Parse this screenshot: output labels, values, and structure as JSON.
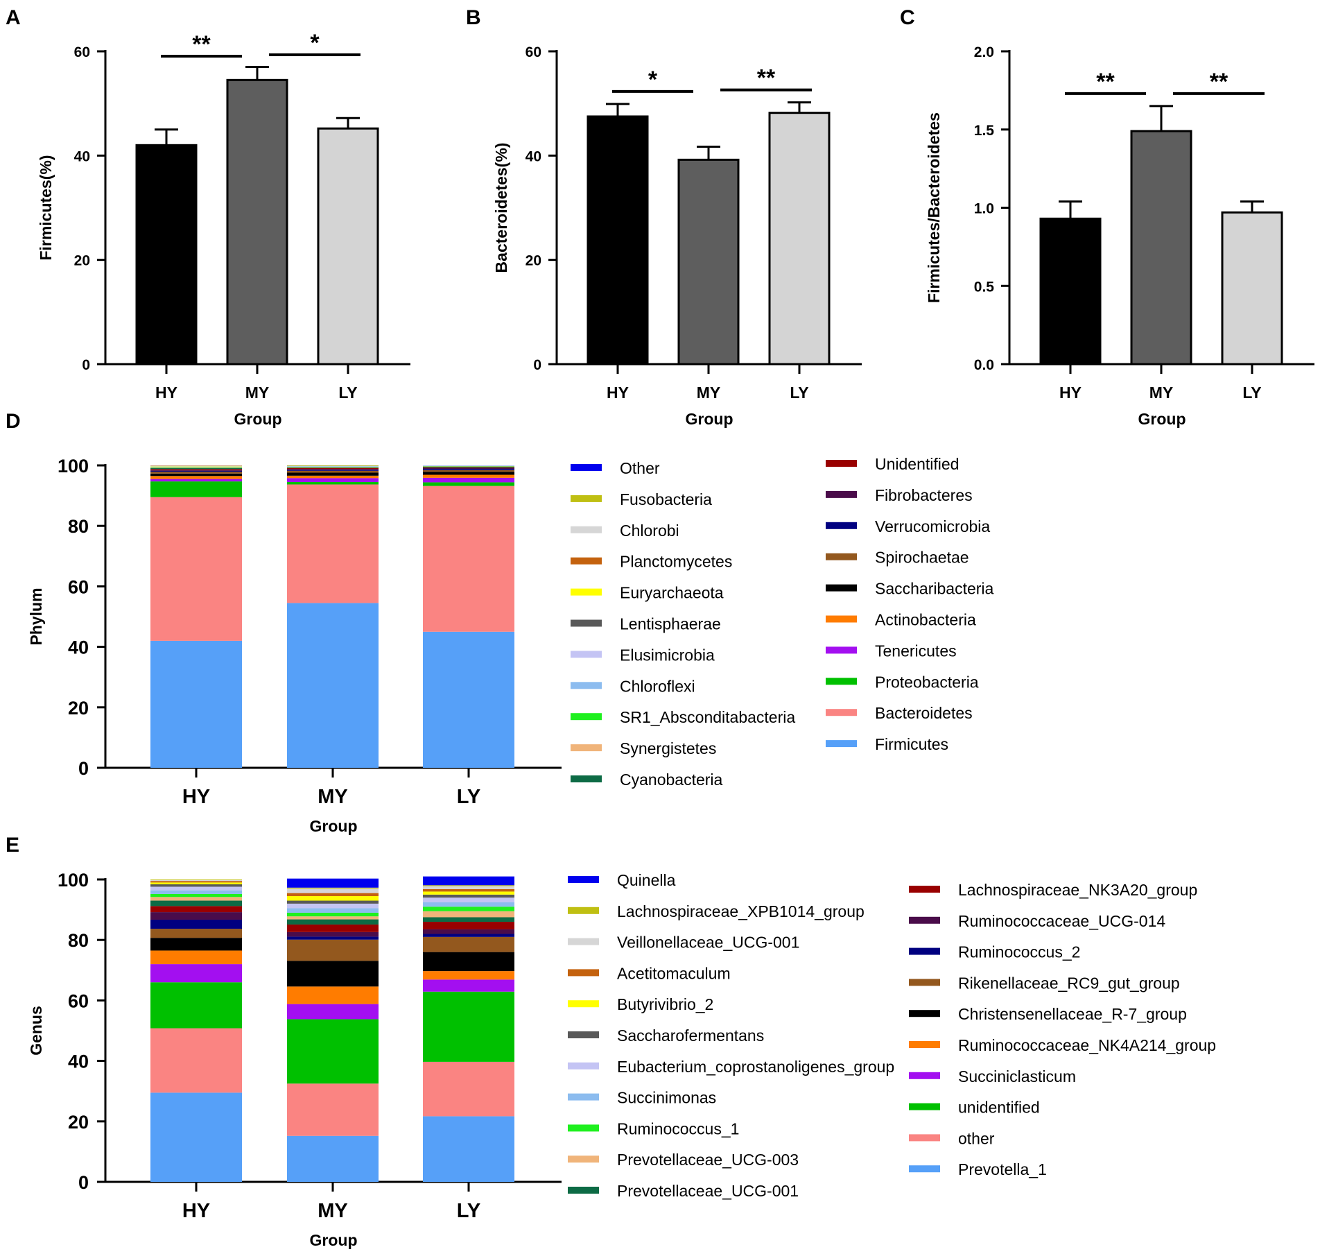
{
  "chart_data": [
    {
      "panel": "A",
      "type": "bar",
      "categories": [
        "HY",
        "MY",
        "LY"
      ],
      "values": [
        42,
        54.5,
        45.2
      ],
      "errors": [
        3.0,
        2.5,
        2.0
      ],
      "colors": [
        "#000000",
        "#5e5e5e",
        "#d4d4d4"
      ],
      "ylabel": "Firmicutes(%)",
      "xlabel": "Group",
      "ylim": [
        0,
        60
      ],
      "yticks": [
        "0",
        "20",
        "40",
        "60"
      ],
      "ytick_values": [
        0,
        20,
        40,
        60
      ],
      "significance": [
        {
          "from": 0,
          "to": 1,
          "label": "**"
        },
        {
          "from": 1,
          "to": 2,
          "label": "*"
        }
      ]
    },
    {
      "panel": "B",
      "type": "bar",
      "categories": [
        "HY",
        "MY",
        "LY"
      ],
      "values": [
        47.5,
        39.2,
        48.2
      ],
      "errors": [
        2.4,
        2.5,
        2.0
      ],
      "colors": [
        "#000000",
        "#5e5e5e",
        "#d4d4d4"
      ],
      "ylabel": "Bacteroidetes(%)",
      "xlabel": "Group",
      "ylim": [
        0,
        60
      ],
      "yticks": [
        "0",
        "20",
        "40",
        "60"
      ],
      "ytick_values": [
        0,
        20,
        40,
        60
      ],
      "significance": [
        {
          "from": 0,
          "to": 1,
          "label": "*"
        },
        {
          "from": 1,
          "to": 2,
          "label": "**"
        }
      ]
    },
    {
      "panel": "C",
      "type": "bar",
      "categories": [
        "HY",
        "MY",
        "LY"
      ],
      "values": [
        0.93,
        1.49,
        0.97
      ],
      "errors": [
        0.11,
        0.16,
        0.07
      ],
      "colors": [
        "#000000",
        "#5e5e5e",
        "#d4d4d4"
      ],
      "ylabel": "Firmicutes/Bacteroidetes",
      "xlabel": "Group",
      "ylim": [
        0,
        2.0
      ],
      "yticks": [
        "0.0",
        "0.5",
        "1.0",
        "1.5",
        "2.0"
      ],
      "ytick_values": [
        0,
        0.5,
        1.0,
        1.5,
        2.0
      ],
      "significance": [
        {
          "from": 0,
          "to": 1,
          "label": "**"
        },
        {
          "from": 1,
          "to": 2,
          "label": "**"
        }
      ]
    },
    {
      "panel": "D",
      "type": "bar",
      "stacked": true,
      "categories": [
        "HY",
        "MY",
        "LY"
      ],
      "ylabel": "Phylum",
      "xlabel": "Group",
      "ylim": [
        0,
        100
      ],
      "yticks": [
        "0",
        "20",
        "40",
        "60",
        "80",
        "100"
      ],
      "ytick_values": [
        0,
        20,
        40,
        60,
        80,
        100
      ],
      "series": [
        {
          "name": "Firmicutes",
          "color": "#56a0f8",
          "values": [
            42,
            54.5,
            45
          ]
        },
        {
          "name": "Bacteroidetes",
          "color": "#fa8482",
          "values": [
            47.5,
            39.2,
            48.2
          ]
        },
        {
          "name": "Proteobacteria",
          "color": "#00c000",
          "values": [
            5.2,
            0.8,
            1.2
          ]
        },
        {
          "name": "Tenericutes",
          "color": "#a30ff0",
          "values": [
            0.8,
            1.3,
            1.5
          ]
        },
        {
          "name": "Actinobacteria",
          "color": "#ff7c00",
          "values": [
            1.0,
            0.8,
            1.0
          ]
        },
        {
          "name": "Saccharibacteria",
          "color": "#000000",
          "values": [
            0.8,
            1.0,
            1.0
          ]
        },
        {
          "name": "Spirochaetae",
          "color": "#93581e",
          "values": [
            0.6,
            0.6,
            0.5
          ]
        },
        {
          "name": "Verrucomicrobia",
          "color": "#000080",
          "values": [
            0.3,
            0.3,
            0.4
          ]
        },
        {
          "name": "Fibrobacteres",
          "color": "#4a0c4a",
          "values": [
            0.3,
            0.3,
            0.3
          ]
        },
        {
          "name": "Unidentified",
          "color": "#990000",
          "values": [
            0.3,
            0.3,
            0.2
          ]
        },
        {
          "name": "Cyanobacteria",
          "color": "#0d6b45",
          "values": [
            0.3,
            0.2,
            0.3
          ]
        },
        {
          "name": "Synergistetes",
          "color": "#f0b47a",
          "values": [
            0.2,
            0.2,
            0.1
          ]
        },
        {
          "name": "SR1_Absconditabacteria",
          "color": "#1ff01f",
          "values": [
            0.2,
            0.1,
            0.1
          ]
        },
        {
          "name": "Chloroflexi",
          "color": "#8cbcef",
          "values": [
            0.1,
            0.1,
            0.1
          ]
        },
        {
          "name": "Elusimicrobia",
          "color": "#c4c4f4",
          "values": [
            0.1,
            0.1,
            0.1
          ]
        },
        {
          "name": "Lentisphaerae",
          "color": "#595959",
          "values": [
            0.0,
            0.1,
            0.0
          ]
        },
        {
          "name": "Euryarchaeota",
          "color": "#ffff00",
          "values": [
            0.1,
            0.1,
            0.0
          ]
        },
        {
          "name": "Planctomycetes",
          "color": "#c4620e",
          "values": [
            0.1,
            0.0,
            0.0
          ]
        },
        {
          "name": "Chlorobi",
          "color": "#d6d6d6",
          "values": [
            0.1,
            0.0,
            0.0
          ]
        },
        {
          "name": "Fusobacteria",
          "color": "#bfbf12",
          "values": [
            0.0,
            0.0,
            0.0
          ]
        },
        {
          "name": "Other",
          "color": "#0000ee",
          "values": [
            0.0,
            0.0,
            0.0
          ]
        }
      ],
      "legend_col1": [
        "Other",
        "Fusobacteria",
        "Chlorobi",
        "Planctomycetes",
        "Euryarchaeota",
        "Lentisphaerae",
        "Elusimicrobia",
        "Chloroflexi",
        "SR1_Absconditabacteria",
        "Synergistetes",
        "Cyanobacteria"
      ],
      "legend_col2": [
        "Unidentified",
        "Fibrobacteres",
        "Verrucomicrobia",
        "Spirochaetae",
        "Saccharibacteria",
        "Actinobacteria",
        "Tenericutes",
        "Proteobacteria",
        "Bacteroidetes",
        "Firmicutes"
      ]
    },
    {
      "panel": "E",
      "type": "bar",
      "stacked": true,
      "categories": [
        "HY",
        "MY",
        "LY"
      ],
      "ylabel": "Genus",
      "xlabel": "Group",
      "ylim": [
        0,
        100
      ],
      "yticks": [
        "0",
        "20",
        "40",
        "60",
        "80",
        "100"
      ],
      "ytick_values": [
        0,
        20,
        40,
        60,
        80,
        100
      ],
      "series": [
        {
          "name": "Prevotella_1",
          "color": "#56a0f8",
          "values": [
            29.5,
            15.2,
            21.7
          ]
        },
        {
          "name": "other",
          "color": "#fa8482",
          "values": [
            21.3,
            17.3,
            18.0
          ]
        },
        {
          "name": "unidentified",
          "color": "#00c000",
          "values": [
            15.2,
            21.3,
            23.2
          ]
        },
        {
          "name": "Succiniclasticum",
          "color": "#a30ff0",
          "values": [
            6.0,
            5.0,
            4.0
          ]
        },
        {
          "name": "Ruminococcaceae_NK4A214_group",
          "color": "#ff7c00",
          "values": [
            4.5,
            5.8,
            2.8
          ]
        },
        {
          "name": "Christensenellaceae_R-7_group",
          "color": "#000000",
          "values": [
            4.2,
            8.5,
            6.3
          ]
        },
        {
          "name": "Rikenellaceae_RC9_gut_group",
          "color": "#93581e",
          "values": [
            3.0,
            7.0,
            5.0
          ]
        },
        {
          "name": "Ruminococcus_2",
          "color": "#000080",
          "values": [
            3.0,
            1.0,
            1.0
          ]
        },
        {
          "name": "Ruminococcaceae_UCG-014",
          "color": "#4a0c4a",
          "values": [
            2.5,
            1.5,
            1.5
          ]
        },
        {
          "name": "Lachnospiraceae_NK3A20_group",
          "color": "#990000",
          "values": [
            2.0,
            2.5,
            2.5
          ]
        },
        {
          "name": "Prevotellaceae_UCG-001",
          "color": "#0d6b45",
          "values": [
            1.8,
            1.7,
            1.5
          ]
        },
        {
          "name": "Prevotellaceae_UCG-003",
          "color": "#f0b47a",
          "values": [
            1.2,
            1.0,
            2.0
          ]
        },
        {
          "name": "Ruminococcus_1",
          "color": "#1ff01f",
          "values": [
            1.0,
            1.2,
            1.5
          ]
        },
        {
          "name": "Succinimonas",
          "color": "#8cbcef",
          "values": [
            1.2,
            1.5,
            1.5
          ]
        },
        {
          "name": "Eubacterium_coprostanoligenes_group",
          "color": "#c4c4f4",
          "values": [
            1.2,
            1.5,
            1.5
          ]
        },
        {
          "name": "Saccharofermentans",
          "color": "#595959",
          "values": [
            0.8,
            1.0,
            1.0
          ]
        },
        {
          "name": "Butyrivibrio_2",
          "color": "#ffff00",
          "values": [
            0.6,
            1.5,
            1.0
          ]
        },
        {
          "name": "Acetitomaculum",
          "color": "#c4620e",
          "values": [
            0.5,
            1.0,
            0.8
          ]
        },
        {
          "name": "Veillonellaceae_UCG-001",
          "color": "#d6d6d6",
          "values": [
            0.3,
            1.5,
            1.0
          ]
        },
        {
          "name": "Lachnospiraceae_XPB1014_group",
          "color": "#bfbf12",
          "values": [
            0.2,
            0.3,
            0.3
          ]
        },
        {
          "name": "Quinella",
          "color": "#0000ee",
          "values": [
            0.0,
            3.0,
            2.9
          ]
        }
      ],
      "legend_col1": [
        "Quinella",
        "Lachnospiraceae_XPB1014_group",
        "Veillonellaceae_UCG-001",
        "Acetitomaculum",
        "Butyrivibrio_2",
        "Saccharofermentans",
        "Eubacterium_coprostanoligenes_group",
        "Succinimonas",
        "Ruminococcus_1",
        "Prevotellaceae_UCG-003",
        "Prevotellaceae_UCG-001"
      ],
      "legend_col2": [
        "Lachnospiraceae_NK3A20_group",
        "Ruminococcaceae_UCG-014",
        "Ruminococcus_2",
        "Rikenellaceae_RC9_gut_group",
        "Christensenellaceae_R-7_group",
        "Ruminococcaceae_NK4A214_group",
        "Succiniclasticum",
        "unidentified",
        "other",
        "Prevotella_1"
      ]
    }
  ]
}
